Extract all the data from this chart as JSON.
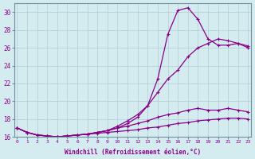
{
  "xlabel": "Windchill (Refroidissement éolien,°C)",
  "background_color": "#d4ecf0",
  "grid_color": "#b0cdd4",
  "line_color": "#880088",
  "x": [
    0,
    1,
    2,
    3,
    4,
    5,
    6,
    7,
    8,
    9,
    10,
    11,
    12,
    13,
    14,
    15,
    16,
    17,
    18,
    19,
    20,
    21,
    22,
    23
  ],
  "line_peak": [
    17.0,
    16.5,
    16.2,
    16.1,
    16.0,
    16.1,
    16.2,
    16.3,
    16.5,
    16.7,
    17.0,
    17.5,
    18.2,
    19.5,
    22.5,
    27.5,
    30.2,
    30.5,
    29.2,
    27.0,
    26.3,
    26.3,
    26.5,
    26.0
  ],
  "line_rise": [
    17.0,
    16.5,
    16.2,
    16.1,
    16.0,
    16.1,
    16.2,
    16.3,
    16.5,
    16.7,
    17.2,
    17.8,
    18.5,
    19.5,
    21.0,
    22.5,
    23.5,
    25.0,
    26.0,
    26.5,
    27.0,
    26.8,
    26.5,
    26.2
  ],
  "line_mid": [
    17.0,
    16.5,
    16.2,
    16.1,
    16.0,
    16.1,
    16.2,
    16.3,
    16.5,
    16.7,
    17.0,
    17.2,
    17.5,
    17.8,
    18.2,
    18.5,
    18.7,
    19.0,
    19.2,
    19.0,
    19.0,
    19.2,
    19.0,
    18.8
  ],
  "line_flat": [
    17.0,
    16.5,
    16.2,
    16.1,
    16.0,
    16.1,
    16.2,
    16.3,
    16.4,
    16.5,
    16.6,
    16.7,
    16.8,
    17.0,
    17.1,
    17.3,
    17.5,
    17.6,
    17.8,
    17.9,
    18.0,
    18.1,
    18.1,
    18.0
  ],
  "ylim": [
    16,
    31
  ],
  "xlim": [
    -0.3,
    23.3
  ],
  "yticks": [
    16,
    18,
    20,
    22,
    24,
    26,
    28,
    30
  ],
  "xticks": [
    0,
    1,
    2,
    3,
    4,
    5,
    6,
    7,
    8,
    9,
    10,
    11,
    12,
    13,
    14,
    15,
    16,
    17,
    18,
    19,
    20,
    21,
    22,
    23
  ]
}
